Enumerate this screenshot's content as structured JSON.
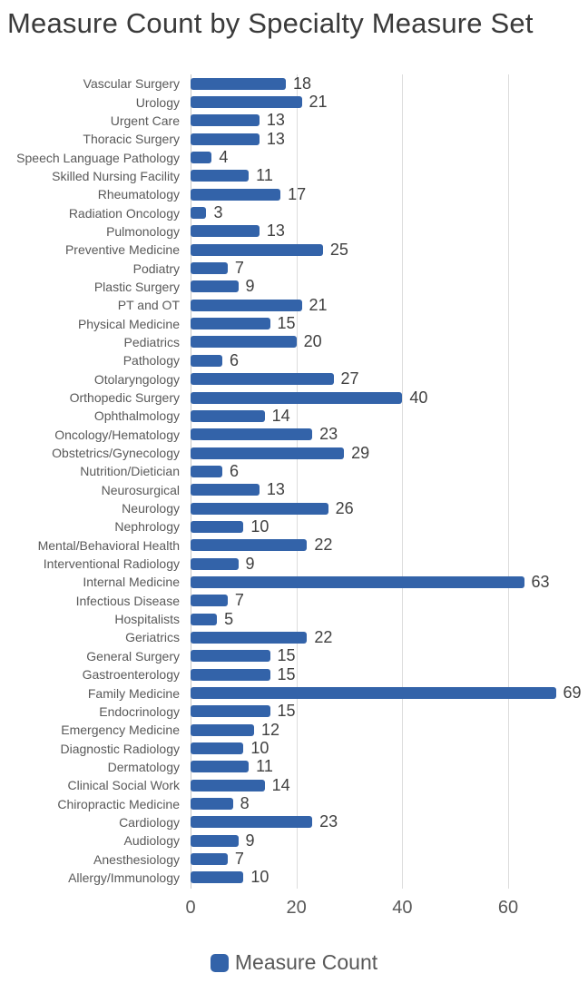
{
  "chart": {
    "title": "Measure Count by Specialty Measure Set",
    "legend_label": "Measure Count"
  },
  "colors": {
    "bar": "#3363a9",
    "gridline": "#dcdcdc",
    "axis_line": "#c9c9c9",
    "category_label_text": "#595959",
    "value_label_text": "#404040",
    "tick_label_text": "#595959",
    "title_text": "#3a3a3a",
    "legend_text": "#595959"
  },
  "chart_data": {
    "type": "bar",
    "orientation": "horizontal",
    "title": "Measure Count by Specialty Measure Set",
    "xlabel": "",
    "ylabel": "",
    "xlim": [
      0,
      72
    ],
    "x_ticks": [
      0,
      20,
      40,
      60
    ],
    "grid": true,
    "legend_position": "bottom",
    "series_name": "Measure Count",
    "categories": [
      "Vascular Surgery",
      "Urology",
      "Urgent Care",
      "Thoracic Surgery",
      "Speech Language Pathology",
      "Skilled Nursing Facility",
      "Rheumatology",
      "Radiation Oncology",
      "Pulmonology",
      "Preventive Medicine",
      "Podiatry",
      "Plastic Surgery",
      "PT and OT",
      "Physical Medicine",
      "Pediatrics",
      "Pathology",
      "Otolaryngology",
      "Orthopedic Surgery",
      "Ophthalmology",
      "Oncology/Hematology",
      "Obstetrics/Gynecology",
      "Nutrition/Dietician",
      "Neurosurgical",
      "Neurology",
      "Nephrology",
      "Mental/Behavioral Health",
      "Interventional Radiology",
      "Internal Medicine",
      "Infectious Disease",
      "Hospitalists",
      "Geriatrics",
      "General Surgery",
      "Gastroenterology",
      "Family Medicine",
      "Endocrinology",
      "Emergency Medicine",
      "Diagnostic Radiology",
      "Dermatology",
      "Clinical Social Work",
      "Chiropractic Medicine",
      "Cardiology",
      "Audiology",
      "Anesthesiology",
      "Allergy/Immunology"
    ],
    "values": [
      18,
      21,
      13,
      13,
      4,
      11,
      17,
      3,
      13,
      25,
      7,
      9,
      21,
      15,
      20,
      6,
      27,
      40,
      14,
      23,
      29,
      6,
      13,
      26,
      10,
      22,
      9,
      63,
      7,
      5,
      22,
      15,
      15,
      69,
      15,
      12,
      10,
      11,
      14,
      8,
      23,
      9,
      7,
      10
    ]
  }
}
